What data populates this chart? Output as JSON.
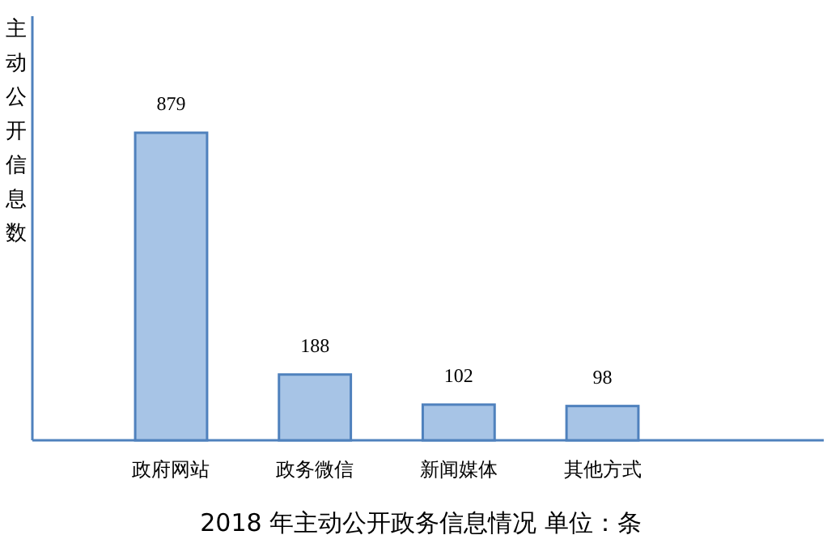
{
  "chart_data": {
    "type": "bar",
    "title": "2018 年主动公开政务信息情况  单位：条",
    "ylabel": "主动公开信息数",
    "categories": [
      "政府网站",
      "政务微信",
      "新闻媒体",
      "其他方式"
    ],
    "values": [
      879,
      188,
      102,
      98
    ],
    "color": "#a7c4e6",
    "data_labels": true
  }
}
